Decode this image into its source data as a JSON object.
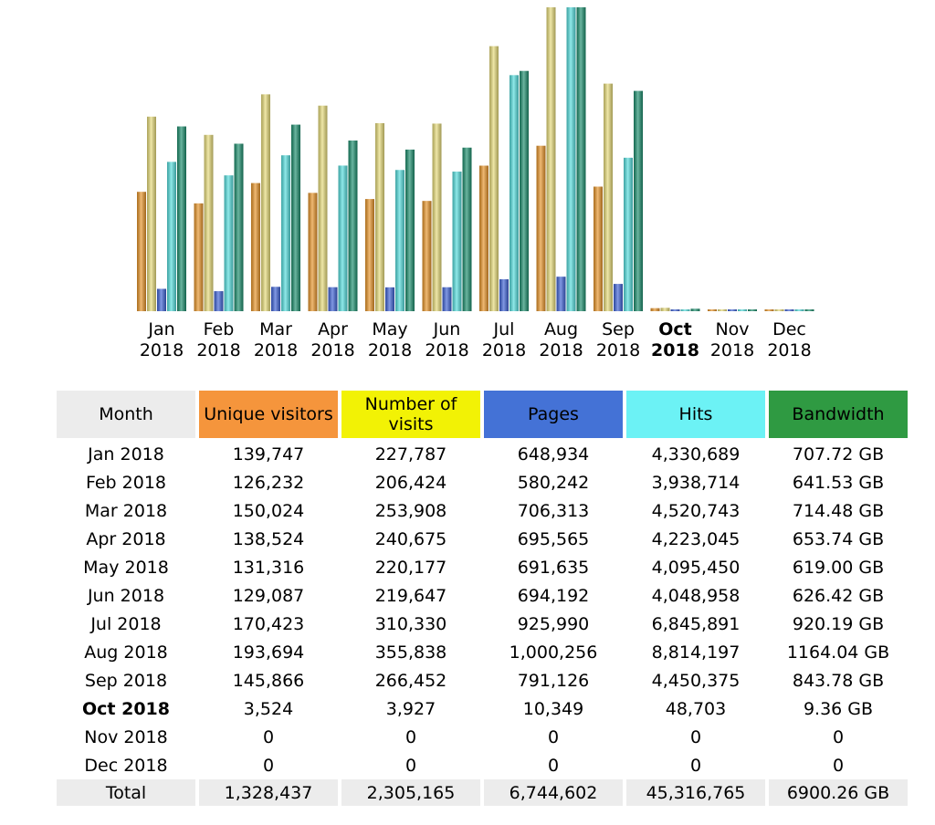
{
  "chart_data": {
    "type": "bar",
    "categories": [
      [
        "Jan",
        "2018"
      ],
      [
        "Feb",
        "2018"
      ],
      [
        "Mar",
        "2018"
      ],
      [
        "Apr",
        "2018"
      ],
      [
        "May",
        "2018"
      ],
      [
        "Jun",
        "2018"
      ],
      [
        "Jul",
        "2018"
      ],
      [
        "Aug",
        "2018"
      ],
      [
        "Sep",
        "2018"
      ],
      [
        "Oct",
        "2018"
      ],
      [
        "Nov",
        "2018"
      ],
      [
        "Dec",
        "2018"
      ]
    ],
    "current_month_index": 9,
    "series": [
      {
        "name": "Unique visitors",
        "color": "#e8952a",
        "values": [
          139747,
          126232,
          150024,
          138524,
          131316,
          129087,
          170423,
          193694,
          145866,
          3524,
          0,
          0
        ]
      },
      {
        "name": "Number of visits",
        "color": "#e8dc7a",
        "values": [
          227787,
          206424,
          253908,
          240675,
          220177,
          219647,
          310330,
          355838,
          266452,
          3927,
          0,
          0
        ]
      },
      {
        "name": "Pages",
        "color": "#3f63d6",
        "values": [
          648934,
          580242,
          706313,
          695565,
          691635,
          694192,
          925990,
          1000256,
          791126,
          10349,
          0,
          0
        ]
      },
      {
        "name": "Hits",
        "color": "#55dede",
        "values": [
          4330689,
          3938714,
          4520743,
          4223045,
          4095450,
          4048958,
          6845891,
          8814197,
          4450375,
          48703,
          0,
          0
        ]
      },
      {
        "name": "Bandwidth",
        "color": "#1d8f6e",
        "values": [
          707.72,
          641.53,
          714.48,
          653.74,
          619.0,
          626.42,
          920.19,
          1164.04,
          843.78,
          9.36,
          0,
          0
        ]
      }
    ]
  },
  "table": {
    "headers": [
      {
        "label": "Month",
        "bg": "#ececec",
        "color": "#000000"
      },
      {
        "label": "Unique visitors",
        "bg": "#f5953c",
        "color": "#000000"
      },
      {
        "label": "Number of visits",
        "bg": "#f2f205",
        "color": "#000000"
      },
      {
        "label": "Pages",
        "bg": "#4472d6",
        "color": "#000000"
      },
      {
        "label": "Hits",
        "bg": "#6cf2f5",
        "color": "#000000"
      },
      {
        "label": "Bandwidth",
        "bg": "#2f9a42",
        "color": "#000000"
      }
    ],
    "rows": [
      [
        "Jan 2018",
        "139,747",
        "227,787",
        "648,934",
        "4,330,689",
        "707.72 GB"
      ],
      [
        "Feb 2018",
        "126,232",
        "206,424",
        "580,242",
        "3,938,714",
        "641.53 GB"
      ],
      [
        "Mar 2018",
        "150,024",
        "253,908",
        "706,313",
        "4,520,743",
        "714.48 GB"
      ],
      [
        "Apr 2018",
        "138,524",
        "240,675",
        "695,565",
        "4,223,045",
        "653.74 GB"
      ],
      [
        "May 2018",
        "131,316",
        "220,177",
        "691,635",
        "4,095,450",
        "619.00 GB"
      ],
      [
        "Jun 2018",
        "129,087",
        "219,647",
        "694,192",
        "4,048,958",
        "626.42 GB"
      ],
      [
        "Jul 2018",
        "170,423",
        "310,330",
        "925,990",
        "6,845,891",
        "920.19 GB"
      ],
      [
        "Aug 2018",
        "193,694",
        "355,838",
        "1,000,256",
        "8,814,197",
        "1164.04 GB"
      ],
      [
        "Sep 2018",
        "145,866",
        "266,452",
        "791,126",
        "4,450,375",
        "843.78 GB"
      ],
      [
        "Oct 2018",
        "3,524",
        "3,927",
        "10,349",
        "48,703",
        "9.36 GB"
      ],
      [
        "Nov 2018",
        "0",
        "0",
        "0",
        "0",
        "0"
      ],
      [
        "Dec 2018",
        "0",
        "0",
        "0",
        "0",
        "0"
      ]
    ],
    "total": [
      "Total",
      "1,328,437",
      "2,305,165",
      "6,744,602",
      "45,316,765",
      "6900.26 GB"
    ]
  }
}
